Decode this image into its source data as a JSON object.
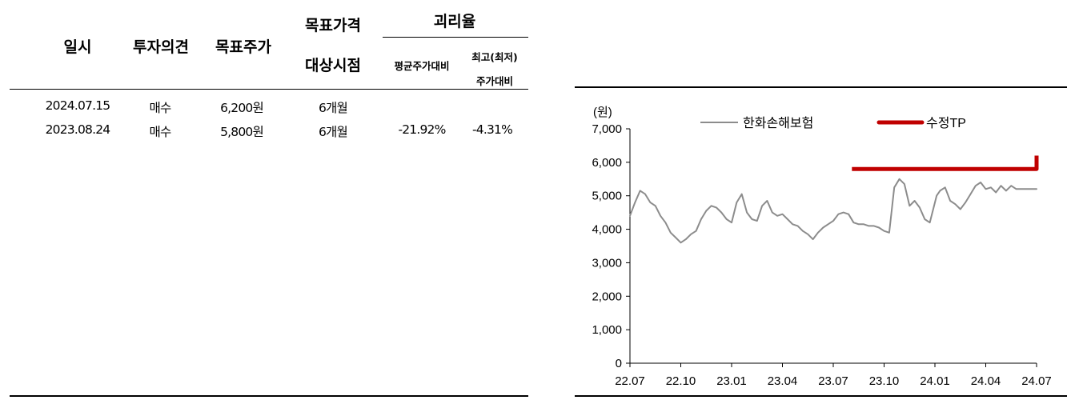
{
  "table": {
    "headers": {
      "date": "일시",
      "opinion": "투자의견",
      "target_price": "목표주가",
      "target_period_line1": "목표가격",
      "target_period_line2": "대상시점",
      "gap": "괴리율",
      "gap_avg": "평균주가대비",
      "gap_extreme_line1": "최고(최저)",
      "gap_extreme_line2": "주가대비"
    },
    "rows": [
      {
        "date": "2024.07.15",
        "opinion": "매수",
        "target_price": "6,200원",
        "target_period": "6개월",
        "gap_avg": "",
        "gap_extreme": ""
      },
      {
        "date": "2023.08.24",
        "opinion": "매수",
        "target_price": "5,800원",
        "target_period": "6개월",
        "gap_avg": "-21.92%",
        "gap_extreme": "-4.31%"
      }
    ]
  },
  "chart_data": {
    "type": "line",
    "unit_label": "(원)",
    "ylim": [
      0,
      7000
    ],
    "yticks": [
      "7,000",
      "6,000",
      "5,000",
      "4,000",
      "3,000",
      "2,000",
      "1,000",
      "0"
    ],
    "ytick_values": [
      7000,
      6000,
      5000,
      4000,
      3000,
      2000,
      1000,
      0
    ],
    "xticks": [
      "22.07",
      "22.10",
      "23.01",
      "23.04",
      "23.07",
      "23.10",
      "24.01",
      "24.04",
      "24.07"
    ],
    "xlim": [
      0,
      24
    ],
    "grid": false,
    "legend_position": "top",
    "series": [
      {
        "name": "한화손해보험",
        "color": "#8c8c8c",
        "x": [
          0,
          0.3,
          0.6,
          0.9,
          1.2,
          1.5,
          1.8,
          2.1,
          2.4,
          2.7,
          3.0,
          3.3,
          3.6,
          3.9,
          4.2,
          4.5,
          4.8,
          5.1,
          5.4,
          5.7,
          6.0,
          6.3,
          6.6,
          6.9,
          7.2,
          7.5,
          7.8,
          8.1,
          8.4,
          8.7,
          9.0,
          9.3,
          9.6,
          9.9,
          10.2,
          10.5,
          10.8,
          11.1,
          11.4,
          11.7,
          12.0,
          12.3,
          12.6,
          12.9,
          13.2,
          13.5,
          13.8,
          14.1,
          14.4,
          14.7,
          15.0,
          15.3,
          15.6,
          15.9,
          16.2,
          16.5,
          16.8,
          17.1,
          17.4,
          17.7,
          18.0,
          18.1,
          18.3,
          18.6,
          18.9,
          19.2,
          19.5,
          19.8,
          20.1,
          20.4,
          20.7,
          21.0,
          21.3,
          21.6,
          21.9,
          22.2,
          22.5,
          22.8,
          23.1,
          23.4,
          23.7,
          24.0
        ],
        "values": [
          4400,
          4800,
          5150,
          5050,
          4800,
          4700,
          4400,
          4200,
          3900,
          3750,
          3600,
          3700,
          3850,
          3950,
          4300,
          4550,
          4700,
          4650,
          4500,
          4300,
          4200,
          4800,
          5050,
          4500,
          4300,
          4250,
          4700,
          4850,
          4500,
          4400,
          4450,
          4300,
          4150,
          4100,
          3950,
          3850,
          3700,
          3900,
          4050,
          4150,
          4250,
          4450,
          4500,
          4450,
          4200,
          4150,
          4150,
          4100,
          4100,
          4050,
          3950,
          3900,
          5250,
          5500,
          5350,
          4700,
          4850,
          4650,
          4300,
          4200,
          4800,
          5000,
          5150,
          5250,
          4850,
          4750,
          4600,
          4800,
          5050,
          5300,
          5400,
          5200,
          5250,
          5100,
          5300,
          5150,
          5300,
          5200,
          5200,
          5200,
          5200,
          5200
        ]
      },
      {
        "name": "수정TP",
        "color": "#c00000",
        "x": [
          13.1,
          24.0,
          24.0,
          24.0
        ],
        "values": [
          5800,
          5800,
          5800,
          6200
        ]
      }
    ]
  }
}
